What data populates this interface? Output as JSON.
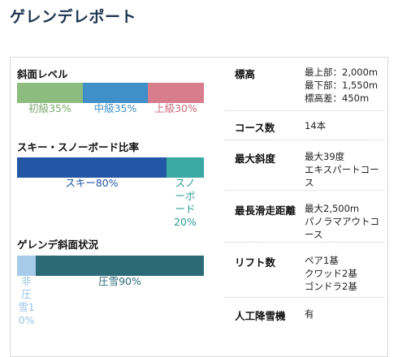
{
  "page": {
    "title": "ゲレンデレポート"
  },
  "slope_level": {
    "title": "斜面レベル",
    "segments": [
      {
        "label": "初級35%",
        "value": 35,
        "color": "#8cbd7e",
        "text_color": "#7aa86b"
      },
      {
        "label": "中級35%",
        "value": 35,
        "color": "#3f8fc8",
        "text_color": "#3f8fc8"
      },
      {
        "label": "上級30%",
        "value": 30,
        "color": "#d77d8b",
        "text_color": "#c96b79"
      }
    ]
  },
  "ski_board_ratio": {
    "title": "スキー・スノーボード比率",
    "segments": [
      {
        "label": "スキー80%",
        "value": 80,
        "color": "#2357a6",
        "text_color": "#2357a6"
      },
      {
        "label": "スノーボード20%",
        "value": 20,
        "color": "#3aa8a3",
        "text_color": "#2e9c95",
        "label_lines": "スノ\nーボ\nード\n20%"
      }
    ]
  },
  "slope_condition": {
    "title": "ゲレンデ斜面状況",
    "segments": [
      {
        "label": "非圧雪10%",
        "value": 10,
        "color": "#a6cbe8",
        "text_color": "#9bc3e3",
        "label_lines": "非\n圧\n雪1\n0%"
      },
      {
        "label": "圧雪90%",
        "value": 90,
        "color": "#2b6b78",
        "text_color": "#2b6b78"
      }
    ]
  },
  "specs": [
    {
      "label": "標高",
      "value": "最上部：2,000m\n最下部：1,550m\n標高差：450m"
    },
    {
      "label": "コース数",
      "value": "14本"
    },
    {
      "label": "最大斜度",
      "value": "最大39度\nエキスパートコース"
    },
    {
      "label": "最長滑走距離",
      "value": "最大2,500m\nパノラマアウトコース"
    },
    {
      "label": "リフト数",
      "value": "ペア1基\nクワッド2基\nゴンドラ2基"
    },
    {
      "label": "人工降雪機",
      "value": "有"
    }
  ]
}
